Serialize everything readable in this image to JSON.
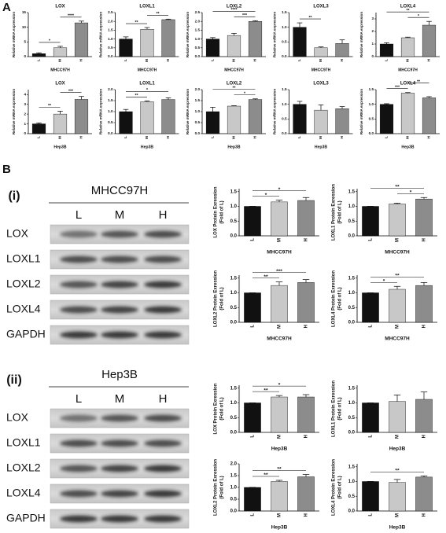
{
  "panel_labels": {
    "a": "A",
    "b": "B"
  },
  "blots": [
    {
      "label": "(i)",
      "cell_line": "MHCC97H",
      "lanes": [
        "L",
        "M",
        "H"
      ],
      "proteins": [
        "LOX",
        "LOXL1",
        "LOXL2",
        "LOXL4",
        "GAPDH"
      ]
    },
    {
      "label": "(ii)",
      "cell_line": "Hep3B",
      "lanes": [
        "L",
        "M",
        "H"
      ],
      "proteins": [
        "LOX",
        "LOXL1",
        "LOXL2",
        "LOXL4",
        "GAPDH"
      ]
    }
  ],
  "chart_data": [
    {
      "type": "bar",
      "title": "LOX",
      "y_label": "Relative mRNA expression",
      "x_label": "MHCC97H",
      "categories": [
        "L",
        "M",
        "H"
      ],
      "values": [
        1,
        3,
        11.5
      ],
      "errors": [
        0.3,
        0.5,
        0.6
      ],
      "colors": [
        "#111111",
        "#c8c8c8",
        "#8c8c8c"
      ],
      "ylim": [
        0,
        15
      ],
      "yticks": [
        0,
        5,
        10,
        15
      ],
      "significance": [
        {
          "between": [
            "L",
            "M"
          ],
          "text": "*"
        },
        {
          "between": [
            "M",
            "H"
          ],
          "text": "****"
        }
      ]
    },
    {
      "type": "bar",
      "title": "LOXL1",
      "y_label": "Relative mRNA expression",
      "x_label": "MHCC97H",
      "categories": [
        "L",
        "M",
        "H"
      ],
      "values": [
        1,
        1.55,
        2.1
      ],
      "errors": [
        0.12,
        0.1,
        0.03
      ],
      "colors": [
        "#111111",
        "#c8c8c8",
        "#8c8c8c"
      ],
      "ylim": [
        0,
        2.5
      ],
      "yticks": [
        {
          "value": 0,
          "label": "0.0"
        },
        {
          "value": 0.5,
          "label": "0.5"
        },
        {
          "value": 1,
          "label": "1.0"
        },
        {
          "value": 1.5,
          "label": "1.5"
        },
        {
          "value": 2,
          "label": "2.0"
        },
        {
          "value": 2.5,
          "label": "2.5"
        }
      ],
      "significance": [
        {
          "between": [
            "L",
            "M"
          ],
          "text": "**"
        },
        {
          "between": [
            "M",
            "H"
          ],
          "text": "**"
        }
      ]
    },
    {
      "type": "bar",
      "title": "LOXL2",
      "y_label": "Relative mRNA expression",
      "x_label": "MHCC97H",
      "categories": [
        "L",
        "M",
        "H"
      ],
      "values": [
        1,
        1.2,
        2
      ],
      "errors": [
        0.08,
        0.12,
        0.04
      ],
      "colors": [
        "#111111",
        "#c8c8c8",
        "#8c8c8c"
      ],
      "ylim": [
        0,
        2.5
      ],
      "yticks": [
        {
          "value": 0,
          "label": "0.0"
        },
        {
          "value": 0.5,
          "label": "0.5"
        },
        {
          "value": 1,
          "label": "1.0"
        },
        {
          "value": 1.5,
          "label": "1.5"
        },
        {
          "value": 2,
          "label": "2.0"
        },
        {
          "value": 2.5,
          "label": "2.5"
        }
      ],
      "significance": [
        {
          "between": [
            "M",
            "H"
          ],
          "text": "***"
        },
        {
          "between": [
            "L",
            "H"
          ],
          "text": "****"
        }
      ]
    },
    {
      "type": "bar",
      "title": "LOXL3",
      "y_label": "Relative mRNA expression",
      "x_label": "MHCC97H",
      "categories": [
        "L",
        "M",
        "H"
      ],
      "values": [
        1,
        0.3,
        0.45
      ],
      "errors": [
        0.15,
        0.03,
        0.12
      ],
      "colors": [
        "#111111",
        "#c8c8c8",
        "#8c8c8c"
      ],
      "ylim": [
        0,
        1.5
      ],
      "yticks": [
        {
          "value": 0,
          "label": "0.0"
        },
        {
          "value": 0.5,
          "label": "0.5"
        },
        {
          "value": 1,
          "label": "1.0"
        },
        {
          "value": 1.5,
          "label": "1.5"
        }
      ],
      "significance": [
        {
          "between": [
            "L",
            "M"
          ],
          "text": "**"
        }
      ]
    },
    {
      "type": "bar",
      "title": "LOXL4",
      "y_label": "Relative mRNA expression",
      "x_label": "MHCC97H",
      "categories": [
        "L",
        "M",
        "H"
      ],
      "values": [
        1,
        1.5,
        2.5
      ],
      "errors": [
        0.1,
        0.05,
        0.3
      ],
      "colors": [
        "#111111",
        "#c8c8c8",
        "#8c8c8c"
      ],
      "ylim": [
        0,
        3.5
      ],
      "yticks": [
        0,
        1,
        2,
        3
      ],
      "significance": [
        {
          "between": [
            "M",
            "H"
          ],
          "text": "*"
        },
        {
          "between": [
            "L",
            "H"
          ],
          "text": "**"
        }
      ]
    },
    {
      "type": "bar",
      "title": "LOX",
      "y_label": "Relative mRNA expression",
      "x_label": "Hep3B",
      "categories": [
        "L",
        "M",
        "H"
      ],
      "values": [
        1,
        2,
        3.5
      ],
      "errors": [
        0.1,
        0.3,
        0.3
      ],
      "colors": [
        "#111111",
        "#c8c8c8",
        "#8c8c8c"
      ],
      "ylim": [
        0,
        4.5
      ],
      "yticks": [
        0,
        1,
        2,
        3,
        4
      ],
      "significance": [
        {
          "between": [
            "L",
            "M"
          ],
          "text": "**"
        },
        {
          "between": [
            "M",
            "H"
          ],
          "text": "***"
        }
      ]
    },
    {
      "type": "bar",
      "title": "LOXL1",
      "y_label": "Relative mRNA expression",
      "x_label": "Hep3B",
      "categories": [
        "L",
        "M",
        "H"
      ],
      "values": [
        1,
        1.45,
        1.55
      ],
      "errors": [
        0.1,
        0.04,
        0.08
      ],
      "colors": [
        "#111111",
        "#c8c8c8",
        "#8c8c8c"
      ],
      "ylim": [
        0,
        2
      ],
      "yticks": [
        {
          "value": 0,
          "label": "0.0"
        },
        {
          "value": 0.5,
          "label": "0.5"
        },
        {
          "value": 1,
          "label": "1.0"
        },
        {
          "value": 1.5,
          "label": "1.5"
        },
        {
          "value": 2,
          "label": "2.0"
        }
      ],
      "significance": [
        {
          "between": [
            "L",
            "M"
          ],
          "text": "**"
        },
        {
          "between": [
            "L",
            "H"
          ],
          "text": "*"
        }
      ]
    },
    {
      "type": "bar",
      "title": "LOXL2",
      "y_label": "Relative mRNA expression",
      "x_label": "Hep3B",
      "categories": [
        "L",
        "M",
        "H"
      ],
      "values": [
        1,
        1.25,
        1.55
      ],
      "errors": [
        0.2,
        0.02,
        0.03
      ],
      "colors": [
        "#111111",
        "#c8c8c8",
        "#8c8c8c"
      ],
      "ylim": [
        0,
        2
      ],
      "yticks": [
        {
          "value": 0,
          "label": "0.0"
        },
        {
          "value": 0.5,
          "label": "0.5"
        },
        {
          "value": 1,
          "label": "1.0"
        },
        {
          "value": 1.5,
          "label": "1.5"
        },
        {
          "value": 2,
          "label": "2.0"
        }
      ],
      "significance": [
        {
          "between": [
            "M",
            "H"
          ],
          "text": "*"
        },
        {
          "between": [
            "L",
            "H"
          ],
          "text": "**"
        }
      ]
    },
    {
      "type": "bar",
      "title": "LOXL3",
      "y_label": "Relative mRNA expression",
      "x_label": "Hep3B",
      "categories": [
        "L",
        "M",
        "H"
      ],
      "values": [
        1,
        0.8,
        0.85
      ],
      "errors": [
        0.1,
        0.18,
        0.07
      ],
      "colors": [
        "#111111",
        "#c8c8c8",
        "#8c8c8c"
      ],
      "ylim": [
        0,
        1.5
      ],
      "yticks": [
        {
          "value": 0,
          "label": "0.0"
        },
        {
          "value": 0.5,
          "label": "0.5"
        },
        {
          "value": 1,
          "label": "1.0"
        },
        {
          "value": 1.5,
          "label": "1.5"
        }
      ],
      "significance": []
    },
    {
      "type": "bar",
      "title": "LOXL4",
      "y_label": "Relative mRNA expression",
      "x_label": "Hep3B",
      "categories": [
        "L",
        "M",
        "H"
      ],
      "values": [
        1,
        1.38,
        1.22
      ],
      "errors": [
        0.02,
        0.02,
        0.04
      ],
      "colors": [
        "#111111",
        "#c8c8c8",
        "#8c8c8c"
      ],
      "ylim": [
        0,
        1.5
      ],
      "yticks": [
        {
          "value": 0,
          "label": "0.0"
        },
        {
          "value": 0.5,
          "label": "0.5"
        },
        {
          "value": 1,
          "label": "1.0"
        },
        {
          "value": 1.5,
          "label": "1.5"
        }
      ],
      "significance": [
        {
          "between": [
            "L",
            "M"
          ],
          "text": "***"
        },
        {
          "between": [
            "M",
            "H"
          ],
          "text": "**"
        }
      ]
    },
    {
      "type": "bar",
      "y_label": [
        "LOX Protein Exression",
        "(Fold of L)"
      ],
      "x_label": "MHCC97H",
      "categories": [
        "L",
        "M",
        "H"
      ],
      "values": [
        1,
        1.15,
        1.2
      ],
      "errors": [
        0,
        0.06,
        0.1
      ],
      "colors": [
        "#111111",
        "#c8c8c8",
        "#8c8c8c"
      ],
      "ylim": [
        0,
        1.6
      ],
      "yticks": [
        {
          "value": 0,
          "label": "0.0"
        },
        {
          "value": 0.5,
          "label": "0.5"
        },
        {
          "value": 1,
          "label": "1.0"
        },
        {
          "value": 1.5,
          "label": "1.5"
        }
      ],
      "significance": [
        {
          "between": [
            "L",
            "M"
          ],
          "text": "*"
        },
        {
          "between": [
            "L",
            "H"
          ],
          "text": "*"
        }
      ]
    },
    {
      "type": "bar",
      "y_label": [
        "LOXL1 Protein Exression",
        "(Fold of L)"
      ],
      "x_label": "MHCC97H",
      "categories": [
        "L",
        "M",
        "H"
      ],
      "values": [
        1,
        1.08,
        1.25
      ],
      "errors": [
        0,
        0.03,
        0.05
      ],
      "colors": [
        "#111111",
        "#c8c8c8",
        "#8c8c8c"
      ],
      "ylim": [
        0,
        1.6
      ],
      "yticks": [
        {
          "value": 0,
          "label": "0.0"
        },
        {
          "value": 0.5,
          "label": "0.5"
        },
        {
          "value": 1,
          "label": "1.0"
        },
        {
          "value": 1.5,
          "label": "1.5"
        }
      ],
      "significance": [
        {
          "between": [
            "M",
            "H"
          ],
          "text": "*"
        },
        {
          "between": [
            "L",
            "H"
          ],
          "text": "**"
        }
      ]
    },
    {
      "type": "bar",
      "y_label": [
        "LOXL2 Protein Exression",
        "(Fold of L)"
      ],
      "x_label": "MHCC97H",
      "categories": [
        "L",
        "M",
        "H"
      ],
      "values": [
        1,
        1.25,
        1.35
      ],
      "errors": [
        0,
        0.12,
        0.1
      ],
      "colors": [
        "#111111",
        "#c8c8c8",
        "#8c8c8c"
      ],
      "ylim": [
        0,
        1.6
      ],
      "yticks": [
        {
          "value": 0,
          "label": "0.0"
        },
        {
          "value": 0.5,
          "label": "0.5"
        },
        {
          "value": 1,
          "label": "1.0"
        },
        {
          "value": 1.5,
          "label": "1.5"
        }
      ],
      "significance": [
        {
          "between": [
            "L",
            "M"
          ],
          "text": "**"
        },
        {
          "between": [
            "L",
            "H"
          ],
          "text": "***"
        }
      ]
    },
    {
      "type": "bar",
      "y_label": [
        "LOXL4 Protein Exression",
        "(Fold of L)"
      ],
      "x_label": "MHCC97H",
      "categories": [
        "L",
        "M",
        "H"
      ],
      "values": [
        1,
        1.12,
        1.25
      ],
      "errors": [
        0,
        0.1,
        0.1
      ],
      "colors": [
        "#111111",
        "#c8c8c8",
        "#8c8c8c"
      ],
      "ylim": [
        0,
        1.6
      ],
      "yticks": [
        {
          "value": 0,
          "label": "0.0"
        },
        {
          "value": 0.5,
          "label": "0.5"
        },
        {
          "value": 1,
          "label": "1.0"
        },
        {
          "value": 1.5,
          "label": "1.5"
        }
      ],
      "significance": [
        {
          "between": [
            "L",
            "M"
          ],
          "text": "*"
        },
        {
          "between": [
            "L",
            "H"
          ],
          "text": "**"
        }
      ]
    },
    {
      "type": "bar",
      "y_label": [
        "LOX Protein Exression",
        "(Fold of L)"
      ],
      "x_label": "Hep3B",
      "categories": [
        "L",
        "M",
        "H"
      ],
      "values": [
        1,
        1.2,
        1.2
      ],
      "errors": [
        0,
        0.05,
        0.08
      ],
      "colors": [
        "#111111",
        "#c8c8c8",
        "#8c8c8c"
      ],
      "ylim": [
        0,
        1.6
      ],
      "yticks": [
        {
          "value": 0,
          "label": "0.0"
        },
        {
          "value": 0.5,
          "label": "0.5"
        },
        {
          "value": 1,
          "label": "1.0"
        },
        {
          "value": 1.5,
          "label": "1.5"
        }
      ],
      "significance": [
        {
          "between": [
            "L",
            "M"
          ],
          "text": "**"
        },
        {
          "between": [
            "L",
            "H"
          ],
          "text": "*"
        }
      ]
    },
    {
      "type": "bar",
      "y_label": [
        "LOXL1 Protein Exression",
        "(Fold of L)"
      ],
      "x_label": "Hep3B",
      "categories": [
        "L",
        "M",
        "H"
      ],
      "values": [
        1,
        1.05,
        1.12
      ],
      "errors": [
        0,
        0.22,
        0.25
      ],
      "colors": [
        "#111111",
        "#c8c8c8",
        "#8c8c8c"
      ],
      "ylim": [
        0,
        1.6
      ],
      "yticks": [
        {
          "value": 0,
          "label": "0.0"
        },
        {
          "value": 0.5,
          "label": "0.5"
        },
        {
          "value": 1,
          "label": "1.0"
        },
        {
          "value": 1.5,
          "label": "1.5"
        }
      ],
      "significance": []
    },
    {
      "type": "bar",
      "y_label": [
        "LOXL2 Protein Exression",
        "(Fold of L)"
      ],
      "x_label": "Hep3B",
      "categories": [
        "L",
        "M",
        "H"
      ],
      "values": [
        1,
        1.25,
        1.45
      ],
      "errors": [
        0,
        0.05,
        0.1
      ],
      "colors": [
        "#111111",
        "#c8c8c8",
        "#8c8c8c"
      ],
      "ylim": [
        0,
        2
      ],
      "yticks": [
        {
          "value": 0,
          "label": "0.0"
        },
        {
          "value": 0.5,
          "label": "0.5"
        },
        {
          "value": 1,
          "label": "1.0"
        },
        {
          "value": 1.5,
          "label": "1.5"
        },
        {
          "value": 2,
          "label": "2.0"
        }
      ],
      "significance": [
        {
          "between": [
            "L",
            "M"
          ],
          "text": "**"
        },
        {
          "between": [
            "L",
            "H"
          ],
          "text": "**"
        }
      ]
    },
    {
      "type": "bar",
      "y_label": [
        "LOXL4 Protein Exression",
        "(Fold of L)"
      ],
      "x_label": "Hep3B",
      "categories": [
        "L",
        "M",
        "H"
      ],
      "values": [
        1,
        0.97,
        1.15
      ],
      "errors": [
        0,
        0.1,
        0.04
      ],
      "colors": [
        "#111111",
        "#c8c8c8",
        "#8c8c8c"
      ],
      "ylim": [
        0,
        1.6
      ],
      "yticks": [
        {
          "value": 0,
          "label": "0.0"
        },
        {
          "value": 0.5,
          "label": "0.5"
        },
        {
          "value": 1,
          "label": "1.0"
        },
        {
          "value": 1.5,
          "label": "1.5"
        }
      ],
      "significance": [
        {
          "between": [
            "L",
            "H"
          ],
          "text": "**"
        }
      ]
    }
  ]
}
